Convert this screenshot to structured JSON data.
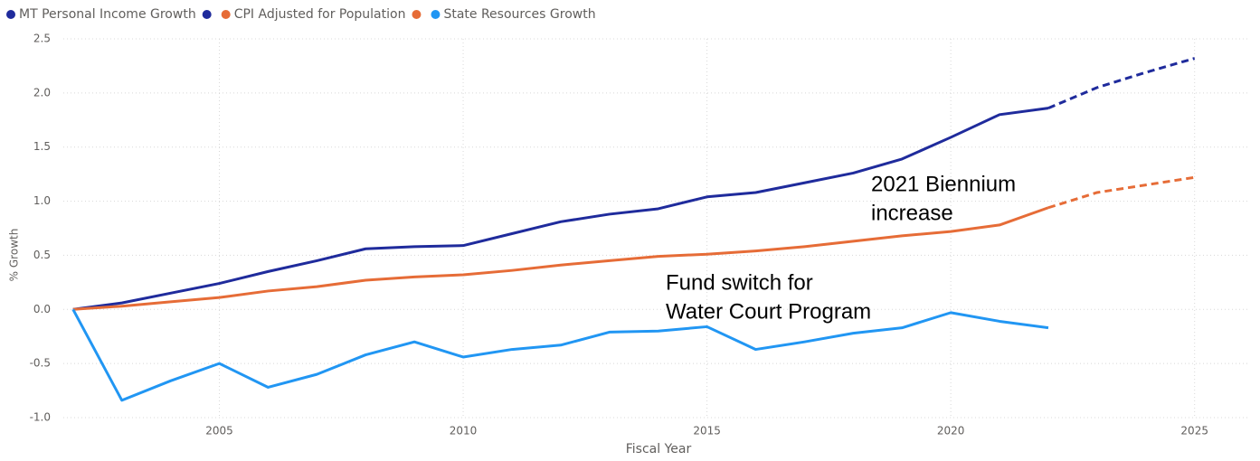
{
  "chart_data": {
    "type": "line",
    "xlabel": "Fiscal Year",
    "ylabel": "% Growth",
    "xlim": [
      2001.8,
      2026.1
    ],
    "ylim": [
      -1,
      2.5
    ],
    "xticks": [
      2005,
      2010,
      2015,
      2020,
      2025
    ],
    "yticks": [
      {
        "value": -1,
        "label": "-1.0"
      },
      -0.5,
      {
        "value": 0,
        "label": "0.0"
      },
      0.5,
      {
        "value": 1,
        "label": "1.0"
      },
      1.5,
      {
        "value": 2,
        "label": "2.0"
      },
      2.5
    ],
    "grid": true,
    "legend": "top-left",
    "series": [
      {
        "name": "MT Personal Income Growth",
        "color": "#1f2b9c",
        "dashed": false,
        "x": [
          2002,
          2003,
          2004,
          2005,
          2006,
          2007,
          2008,
          2009,
          2010,
          2011,
          2012,
          2013,
          2014,
          2015,
          2016,
          2017,
          2018,
          2019,
          2020,
          2021,
          2022
        ],
        "values": [
          0,
          0.06,
          0.15,
          0.24,
          0.35,
          0.45,
          0.56,
          0.58,
          0.59,
          0.7,
          0.81,
          0.88,
          0.93,
          1.04,
          1.08,
          1.17,
          1.26,
          1.39,
          1.59,
          1.8,
          1.86
        ]
      },
      {
        "name": null,
        "color": "#1f2b9c",
        "dashed": true,
        "x": [
          2022,
          2023,
          2024,
          2025
        ],
        "values": [
          1.86,
          2.05,
          2.19,
          2.32
        ]
      },
      {
        "name": "CPI Adjusted for Population",
        "color": "#e66c37",
        "dashed": false,
        "x": [
          2002,
          2003,
          2004,
          2005,
          2006,
          2007,
          2008,
          2009,
          2010,
          2011,
          2012,
          2013,
          2014,
          2015,
          2016,
          2017,
          2018,
          2019,
          2020,
          2021,
          2022
        ],
        "values": [
          0,
          0.03,
          0.07,
          0.11,
          0.17,
          0.21,
          0.27,
          0.3,
          0.32,
          0.36,
          0.41,
          0.45,
          0.49,
          0.51,
          0.54,
          0.58,
          0.63,
          0.68,
          0.72,
          0.78,
          0.94
        ]
      },
      {
        "name": null,
        "color": "#e66c37",
        "dashed": true,
        "x": [
          2022,
          2023,
          2024,
          2025
        ],
        "values": [
          0.94,
          1.08,
          1.15,
          1.22
        ]
      },
      {
        "name": "State Resources Growth",
        "color": "#2196f3",
        "dashed": false,
        "x": [
          2002,
          2003,
          2004,
          2005,
          2006,
          2007,
          2008,
          2009,
          2010,
          2011,
          2012,
          2013,
          2014,
          2015,
          2016,
          2017,
          2018,
          2019,
          2020,
          2021,
          2022
        ],
        "values": [
          0,
          -0.84,
          -0.66,
          -0.5,
          -0.72,
          -0.6,
          -0.42,
          -0.3,
          -0.44,
          -0.37,
          -0.33,
          -0.21,
          -0.2,
          -0.16,
          -0.37,
          -0.3,
          -0.22,
          -0.17,
          -0.03,
          -0.11,
          -0.17
        ]
      }
    ],
    "annotations": [
      {
        "lines": [
          "2021 Biennium",
          "increase"
        ]
      },
      {
        "lines": [
          "Fund switch for",
          "Water Court Program"
        ]
      }
    ]
  }
}
